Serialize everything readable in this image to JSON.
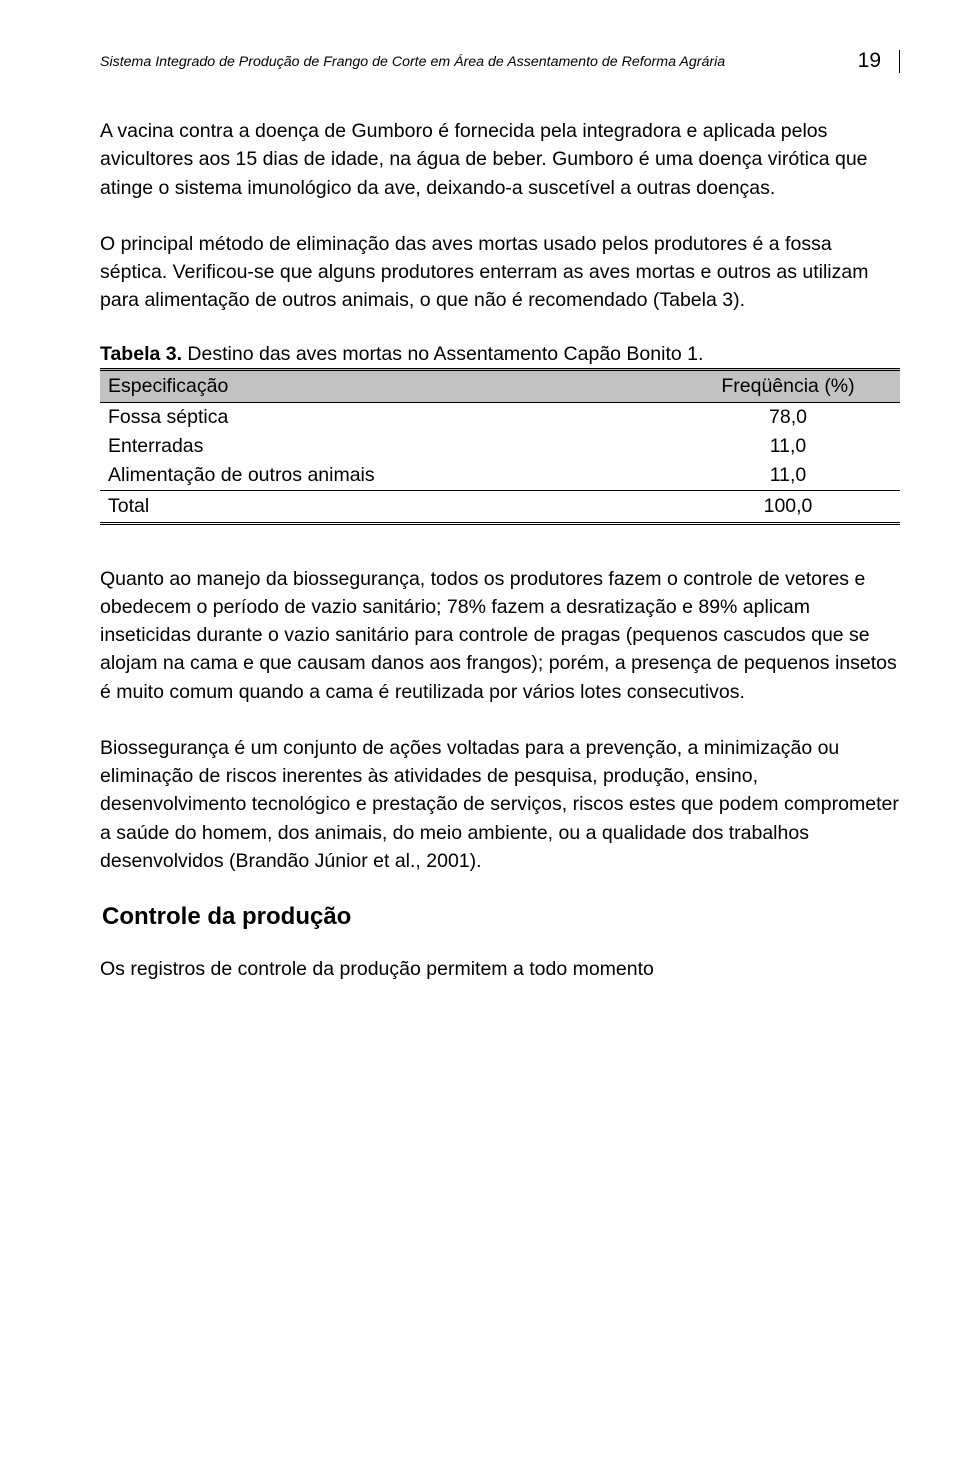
{
  "header": {
    "running_title": "Sistema Integrado de Produção de Frango de Corte em Área de Assentamento de Reforma Agrária",
    "page_number": "19"
  },
  "paragraphs": {
    "p1": "A vacina contra a doença de Gumboro é fornecida pela integradora e aplicada pelos avicultores aos 15 dias de idade, na água de beber. Gumboro é uma doença virótica que atinge o sistema imunológico da ave, deixando-a suscetível a outras doenças.",
    "p2": "O principal método de eliminação das aves mortas usado pelos produtores é a fossa séptica. Verificou-se que alguns produtores enterram as aves mortas e outros as utilizam para alimentação de outros animais, o que não é recomendado (Tabela 3).",
    "p3": "Quanto ao manejo da biossegurança, todos os produtores fazem o controle de vetores e obedecem o período de vazio sanitário; 78% fazem a desratização e 89% aplicam inseticidas durante o vazio sanitário para controle de pragas (pequenos cascudos que se alojam na cama e que causam danos aos frangos); porém, a presença de pequenos insetos é muito comum quando a cama é reutilizada por vários lotes consecutivos.",
    "p4": "Biossegurança é um conjunto de ações voltadas para a prevenção, a minimização ou eliminação de riscos inerentes às atividades de pesquisa, produção, ensino, desenvolvimento tecnológico e prestação de serviços, riscos estes que podem comprometer a saúde do homem, dos animais, do meio ambiente, ou a qualidade dos trabalhos desenvolvidos (Brandão Júnior et al., 2001).",
    "p5": "Os registros de controle da produção permitem a todo momento"
  },
  "table3": {
    "caption_label": "Tabela 3.",
    "caption_text": "  Destino das aves mortas no Assentamento Capão Bonito 1.",
    "columns": [
      "Especificação",
      "Freqüência (%)"
    ],
    "rows": [
      {
        "label": "Fossa séptica",
        "value": "78,0"
      },
      {
        "label": "Enterradas",
        "value": "11,0"
      },
      {
        "label": "Alimentação de outros animais",
        "value": "11,0"
      }
    ],
    "total": {
      "label": "Total",
      "value": "100,0"
    },
    "header_bg": "#c2c2c2",
    "border_color": "#000000",
    "font_size_pt": 14
  },
  "section_heading": "Controle da produção"
}
